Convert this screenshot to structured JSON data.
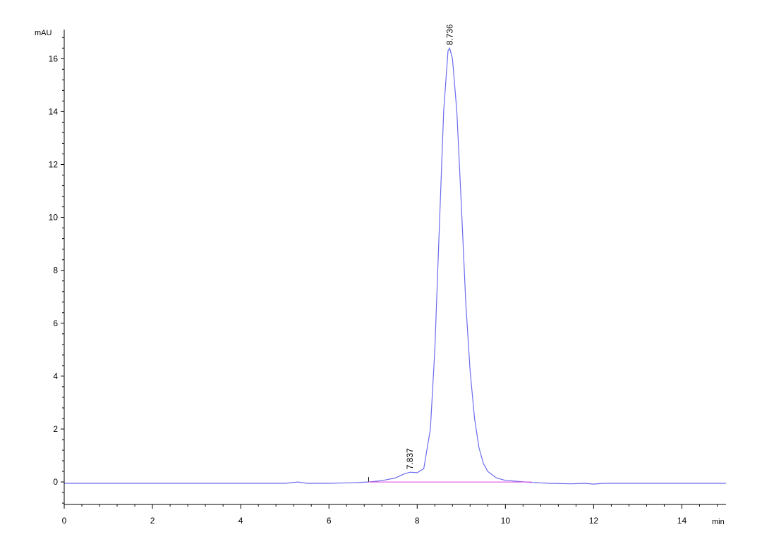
{
  "chart_data": {
    "type": "line",
    "xlabel": "min",
    "ylabel": "mAU",
    "xlim": [
      0,
      15
    ],
    "ylim": [
      -0.85,
      17.1
    ],
    "x_ticks": [
      0,
      2,
      4,
      6,
      8,
      10,
      12,
      14
    ],
    "y_ticks": [
      0,
      2,
      4,
      6,
      8,
      10,
      12,
      14,
      16
    ],
    "grid": false,
    "colors": {
      "signal": "#6b6bf0",
      "baseline": "#e040e0",
      "axis": "#000000"
    },
    "series": [
      {
        "x": [
          0,
          1,
          2,
          3,
          4,
          5,
          5.3,
          5.5,
          6,
          6.5,
          6.9,
          7.2,
          7.5,
          7.7,
          7.837,
          8.0,
          8.15,
          8.3,
          8.4,
          8.5,
          8.6,
          8.7,
          8.736,
          8.8,
          8.9,
          9.0,
          9.1,
          9.2,
          9.3,
          9.4,
          9.5,
          9.6,
          9.8,
          10.0,
          10.3,
          10.6,
          11.0,
          11.5,
          11.8,
          12.0,
          12.2,
          13,
          14,
          15
        ],
        "y": [
          -0.05,
          -0.05,
          -0.05,
          -0.05,
          -0.05,
          -0.05,
          0.0,
          -0.05,
          -0.05,
          -0.03,
          0.0,
          0.05,
          0.15,
          0.3,
          0.37,
          0.35,
          0.5,
          2.0,
          5.0,
          9.5,
          14.0,
          16.3,
          16.4,
          16.0,
          14.0,
          10.5,
          6.8,
          4.2,
          2.4,
          1.3,
          0.7,
          0.4,
          0.15,
          0.06,
          0.02,
          -0.02,
          -0.05,
          -0.07,
          -0.05,
          -0.08,
          -0.05,
          -0.05,
          -0.05,
          -0.05
        ]
      }
    ],
    "baseline": {
      "x": [
        6.9,
        10.6
      ],
      "y": [
        0.0,
        0.0
      ]
    },
    "annotations": [
      {
        "x": 7.837,
        "y": 0.37,
        "text": "7.837"
      },
      {
        "x": 8.736,
        "y": 16.4,
        "text": "8.736"
      }
    ]
  }
}
